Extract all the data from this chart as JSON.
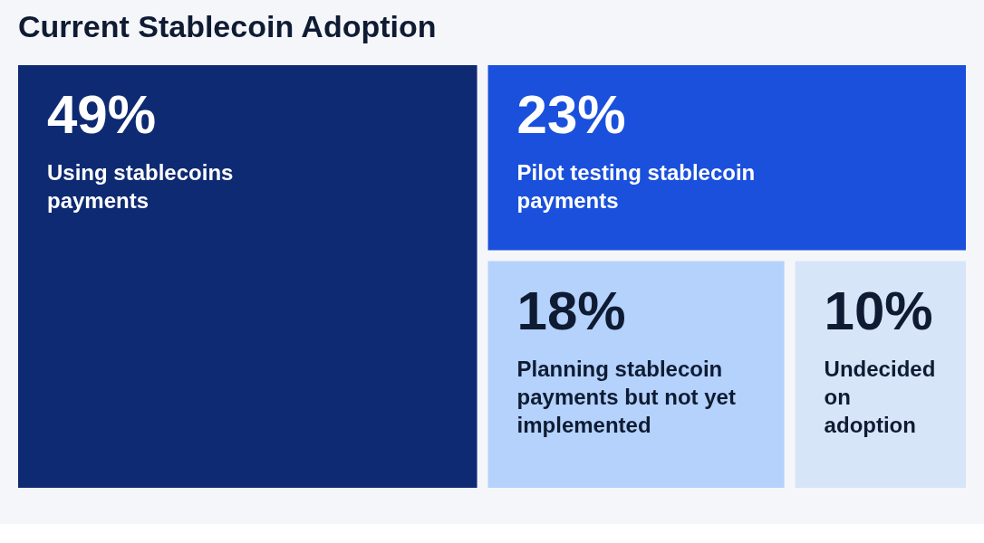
{
  "chart_data": {
    "type": "other",
    "title": "Current Stablecoin Adoption",
    "categories": [
      "Using stablecoins payments",
      "Pilot testing stablecoin payments",
      "Planning stablecoin payments but not yet implemented",
      "Undecided on adoption"
    ],
    "values": [
      49,
      23,
      18,
      10
    ],
    "value_labels": [
      "49%",
      "23%",
      "18%",
      "10%"
    ],
    "colors": [
      "#0e2a73",
      "#1a50dc",
      "#b4d2fb",
      "#d7e5f8"
    ]
  }
}
